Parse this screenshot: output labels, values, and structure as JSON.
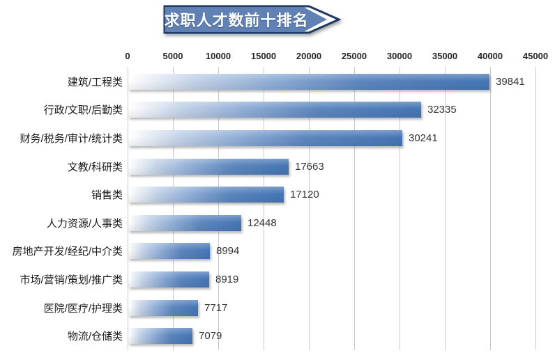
{
  "banner": {
    "title": "求职人才数前十排名"
  },
  "colors": {
    "background": "#ffffff",
    "banner_fill": "#5f81b4",
    "banner_fill_light": "#6d8cbc",
    "banner_border": "#1b3a66",
    "banner_text": "#ffffff",
    "bar_gradient": [
      "#ffffff",
      "#c3d2e7",
      "#8fadd6",
      "#5c86be",
      "#4576b4"
    ],
    "gridline": "#c9c9c9",
    "axis_text": "#262626",
    "value_text": "#333333",
    "category_text": "#1a1a1a"
  },
  "chart_data": {
    "type": "bar",
    "orientation": "horizontal",
    "title": "求职人才数前十排名",
    "categories": [
      "建筑/工程类",
      "行政/文职/后勤类",
      "财务/税务/审计/统计类",
      "文教/科研类",
      "销售类",
      "人力资源/人事类",
      "房地产开发/经纪/中介类",
      "市场/营销/策划/推广类",
      "医院/医疗/护理类",
      "物流/仓储类"
    ],
    "values": [
      39841,
      32335,
      30241,
      17663,
      17120,
      12448,
      8994,
      8919,
      7717,
      7079
    ],
    "xlim": [
      0,
      45000
    ],
    "x_tick_interval": 5000,
    "x_tick_labels": [
      "0",
      "5000",
      "10000",
      "15000",
      "20000",
      "25000",
      "30000",
      "35000",
      "40000",
      "45000"
    ],
    "grid": "vertical",
    "value_labels": "outside-end",
    "legend": "none",
    "xlabel": "",
    "ylabel": ""
  }
}
